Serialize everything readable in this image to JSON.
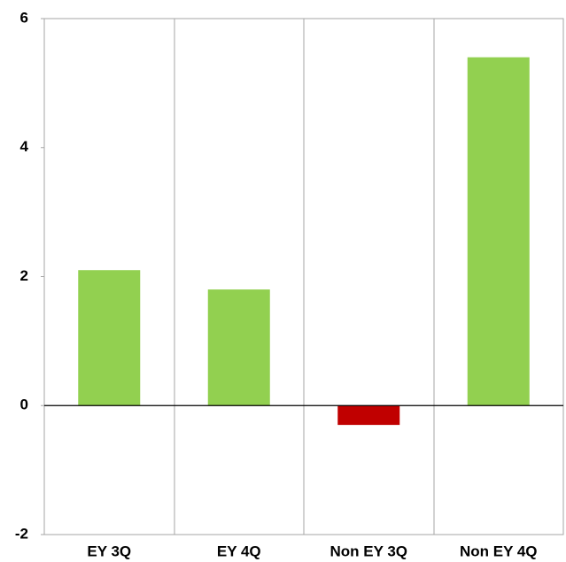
{
  "chart_data": {
    "type": "bar",
    "categories": [
      "EY 3Q",
      "EY 4Q",
      "Non EY 3Q",
      "Non EY 4Q"
    ],
    "values": [
      2.1,
      1.8,
      -0.3,
      5.4
    ],
    "colors": [
      "#92d050",
      "#92d050",
      "#c00000",
      "#92d050"
    ],
    "ylim": [
      -2,
      6
    ],
    "yticks": [
      -2,
      0,
      2,
      4,
      6
    ]
  }
}
